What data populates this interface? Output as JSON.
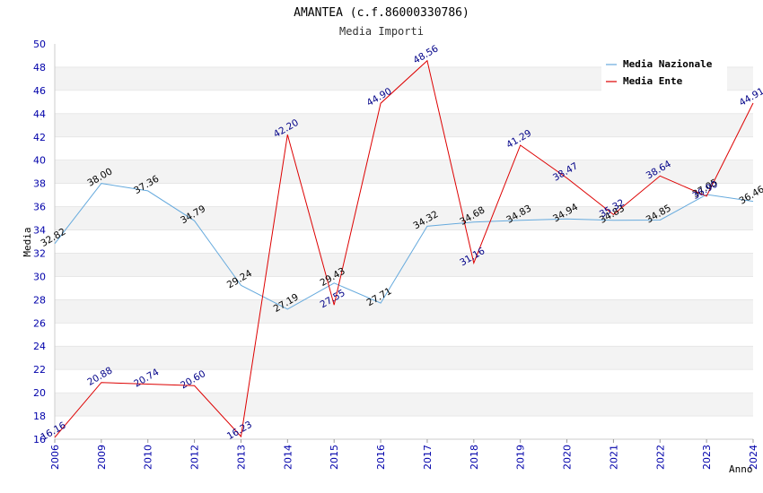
{
  "chart_data": {
    "type": "line",
    "title": "AMANTEA (c.f.86000330786)",
    "subtitle": "Media Importi",
    "xlabel": "Anno",
    "ylabel": "Media",
    "ylim": [
      16,
      50
    ],
    "yticks": [
      "16",
      "18",
      "20",
      "22",
      "24",
      "26",
      "28",
      "30",
      "32",
      "34",
      "36",
      "38",
      "40",
      "42",
      "44",
      "46",
      "48",
      "50"
    ],
    "categories": [
      "2006",
      "2009",
      "2010",
      "2012",
      "2013",
      "2014",
      "2015",
      "2016",
      "2017",
      "2018",
      "2019",
      "2020",
      "2021",
      "2022",
      "2023",
      "2024"
    ],
    "series": [
      {
        "name": "Media Nazionale",
        "color": "#66aadd",
        "label_color": "#000000",
        "values": [
          32.82,
          38.0,
          37.36,
          34.79,
          29.24,
          27.19,
          29.43,
          27.71,
          34.32,
          34.68,
          34.83,
          34.94,
          34.83,
          34.85,
          37.05,
          36.46
        ],
        "labels": [
          "32.82",
          "38.00",
          "37.36",
          "34.79",
          "29.24",
          "27.19",
          "29.43",
          "27.71",
          "34.32",
          "34.68",
          "34.83",
          "34.94",
          "34.83",
          "34.85",
          "37.05",
          "36.46"
        ]
      },
      {
        "name": "Media Ente",
        "color": "#dd0000",
        "label_color": "#000088",
        "values": [
          16.16,
          20.88,
          20.74,
          20.6,
          16.23,
          42.2,
          27.55,
          44.9,
          48.56,
          31.16,
          41.29,
          38.47,
          35.32,
          38.64,
          36.9,
          44.91
        ],
        "labels": [
          "16.16",
          "20.88",
          "20.74",
          "20.60",
          "16.23",
          "42.20",
          "27.55",
          "44.90",
          "48.56",
          "31.16",
          "41.29",
          "38.47",
          "35.32",
          "38.64",
          "36.90",
          "44.91"
        ]
      }
    ],
    "legend": "top-right",
    "grid": "horizontal bands"
  }
}
